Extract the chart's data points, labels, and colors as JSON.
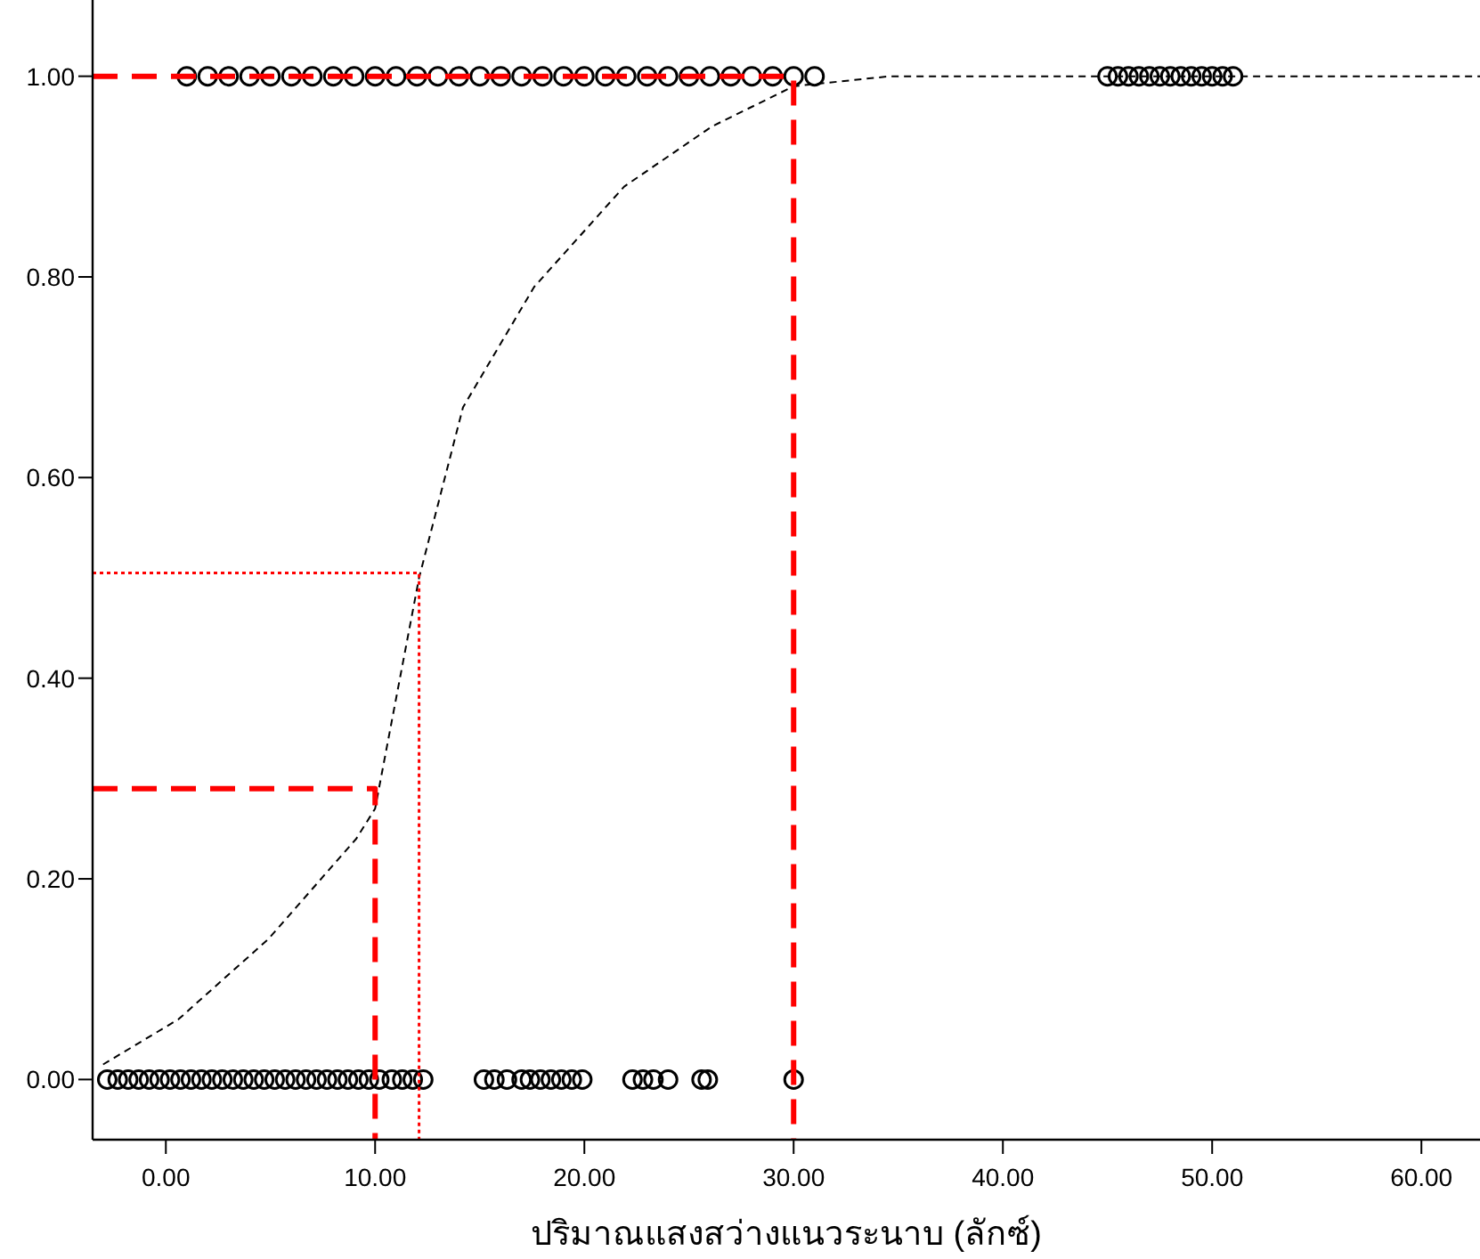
{
  "chart_data": {
    "type": "scatter",
    "xlabel": "ปริมาณแสงสว่างแนวระนาบ (ลักซ์)",
    "xlim": [
      -3.5,
      62.8
    ],
    "ylim": [
      -0.06,
      1.076
    ],
    "xticks": [
      {
        "value": 0,
        "label": "0.00"
      },
      {
        "value": 10,
        "label": "10.00"
      },
      {
        "value": 20,
        "label": "20.00"
      },
      {
        "value": 30,
        "label": "30.00"
      },
      {
        "value": 40,
        "label": "40.00"
      },
      {
        "value": 50,
        "label": "50.00"
      },
      {
        "value": 60,
        "label": "60.00"
      }
    ],
    "yticks": [
      {
        "value": 0,
        "label": "0.00"
      },
      {
        "value": 0.2,
        "label": "0.20"
      },
      {
        "value": 0.4,
        "label": "0.40"
      },
      {
        "value": 0.6,
        "label": "0.60"
      },
      {
        "value": 0.8,
        "label": "0.80"
      },
      {
        "value": 1,
        "label": "1.00"
      }
    ],
    "grid": false,
    "series": [
      {
        "marker": "circle",
        "color": "#000000",
        "x": [
          -2.8,
          -2.3,
          -1.8,
          -1.3,
          -0.8,
          -0.3,
          0.2,
          0.7,
          1.2,
          1.7,
          2.2,
          2.7,
          3.2,
          3.7,
          4.2,
          4.7,
          5.2,
          5.7,
          6.2,
          6.7,
          7.2,
          7.7,
          8.2,
          8.7,
          9.2,
          9.7,
          10.2,
          10.8,
          11.3,
          11.8,
          12.3,
          15.2,
          15.7,
          16.3,
          17.0,
          17.4,
          17.9,
          18.4,
          18.9,
          19.4,
          19.9,
          22.3,
          22.8,
          23.3,
          24.0,
          25.6,
          25.9,
          30.0
        ],
        "values": [
          0,
          0,
          0,
          0,
          0,
          0,
          0,
          0,
          0,
          0,
          0,
          0,
          0,
          0,
          0,
          0,
          0,
          0,
          0,
          0,
          0,
          0,
          0,
          0,
          0,
          0,
          0,
          0,
          0,
          0,
          0,
          0,
          0,
          0,
          0,
          0,
          0,
          0,
          0,
          0,
          0,
          0,
          0,
          0,
          0,
          0,
          0,
          0
        ]
      },
      {
        "marker": "circle",
        "color": "#000000",
        "x": [
          1,
          2,
          3,
          4,
          5,
          6,
          7,
          8,
          9,
          10,
          11,
          12,
          13,
          14,
          15,
          16,
          17,
          18,
          19,
          20,
          21,
          22,
          23,
          24,
          25,
          26,
          27,
          28,
          29,
          30,
          31,
          45,
          45.5,
          46,
          46.5,
          47,
          47.5,
          48,
          48.5,
          49,
          49.5,
          50,
          50.5,
          51
        ],
        "values": [
          1,
          1,
          1,
          1,
          1,
          1,
          1,
          1,
          1,
          1,
          1,
          1,
          1,
          1,
          1,
          1,
          1,
          1,
          1,
          1,
          1,
          1,
          1,
          1,
          1,
          1,
          1,
          1,
          1,
          1,
          1,
          1,
          1,
          1,
          1,
          1,
          1,
          1,
          1,
          1,
          1,
          1,
          1,
          1
        ]
      },
      {
        "type": "line",
        "line_style": "dashed",
        "color": "#000000",
        "x": [
          -3,
          0.6,
          4.9,
          9.1,
          10,
          12.1,
          14.2,
          17.6,
          21.9,
          26.1,
          30,
          34.6,
          40,
          62.8
        ],
        "values": [
          0.015,
          0.06,
          0.14,
          0.24,
          0.27,
          0.5,
          0.67,
          0.79,
          0.89,
          0.95,
          0.99,
          1.0,
          1.0,
          1.0
        ]
      },
      {
        "type": "line",
        "line_style": "dashed",
        "color": "#ff0000",
        "x": [
          -3.5,
          30,
          30
        ],
        "values": [
          1.0,
          1.0,
          -0.06
        ]
      },
      {
        "type": "line",
        "line_style": "dashed",
        "color": "#ff0000",
        "x": [
          -3.5,
          10,
          10
        ],
        "values": [
          0.29,
          0.29,
          -0.06
        ]
      },
      {
        "type": "line",
        "line_style": "dotted",
        "color": "#ff0000",
        "x": [
          -3.5,
          12.1,
          12.1
        ],
        "values": [
          0.505,
          0.505,
          -0.06
        ]
      }
    ]
  }
}
